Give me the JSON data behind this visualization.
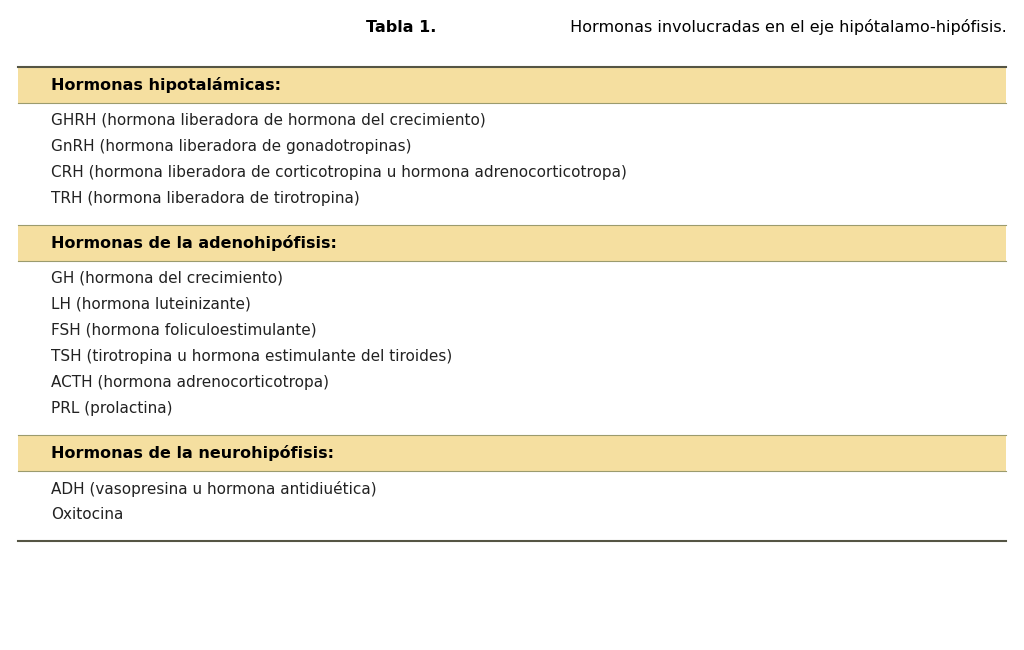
{
  "title_bold": "Tabla 1.",
  "title_normal": " Hormonas involucradas en el eje hipótalamo-hipófisis.",
  "background_color": "#ffffff",
  "header_bg_color": "#f5dfa0",
  "body_text_color": "#222222",
  "sections": [
    {
      "header": "Hormonas hipotalámicas:",
      "items": [
        "GHRH (hormona liberadora de hormona del crecimiento)",
        "GnRH (hormona liberadora de gonadotropinas)",
        "CRH (hormona liberadora de corticotropina u hormona adrenocorticotropa)",
        "TRH (hormona liberadora de tirotropina)"
      ]
    },
    {
      "header": "Hormonas de la adenohipófisis:",
      "items": [
        "GH (hormona del crecimiento)",
        "LH (hormona luteinizante)",
        "FSH (hormona foliculoestimulante)",
        "TSH (tirotropina u hormona estimulante del tiroides)",
        "ACTH (hormona adrenocorticotropa)",
        "PRL (prolactina)"
      ]
    },
    {
      "header": "Hormonas de la neurohipófisis:",
      "items": [
        "ADH (vasopresina u hormona antidiuética)",
        "Oxitocina"
      ]
    }
  ],
  "figsize": [
    10.24,
    6.5
  ],
  "dpi": 100,
  "header_fontsize": 11.5,
  "body_fontsize": 11.0,
  "title_fontsize": 11.5
}
